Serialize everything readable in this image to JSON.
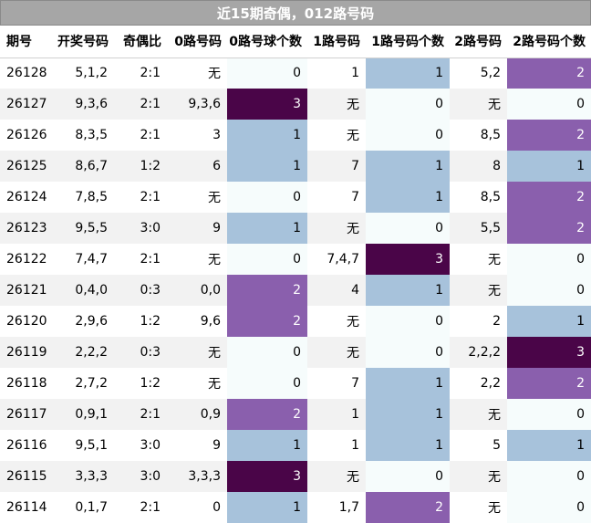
{
  "title": "近15期奇偶，012路号码",
  "colors": {
    "title_bg": "#a6a6a6",
    "count_0": "#f6fcfc",
    "count_1": "#a7c2db",
    "count_2": "#8a5fad",
    "count_3": "#4a0548"
  },
  "chart_data": {
    "type": "table",
    "columns": [
      "期号",
      "开奖号码",
      "奇偶比",
      "0路号码",
      "0路号球个数",
      "1路号码",
      "1路号码个数",
      "2路号码",
      "2路号码个数"
    ],
    "rows": [
      [
        "26128",
        "5,1,2",
        "2:1",
        "无",
        0,
        "1",
        1,
        "5,2",
        2
      ],
      [
        "26127",
        "9,3,6",
        "2:1",
        "9,3,6",
        3,
        "无",
        0,
        "无",
        0
      ],
      [
        "26126",
        "8,3,5",
        "2:1",
        "3",
        1,
        "无",
        0,
        "8,5",
        2
      ],
      [
        "26125",
        "8,6,7",
        "1:2",
        "6",
        1,
        "7",
        1,
        "8",
        1
      ],
      [
        "26124",
        "7,8,5",
        "2:1",
        "无",
        0,
        "7",
        1,
        "8,5",
        2
      ],
      [
        "26123",
        "9,5,5",
        "3:0",
        "9",
        1,
        "无",
        0,
        "5,5",
        2
      ],
      [
        "26122",
        "7,4,7",
        "2:1",
        "无",
        0,
        "7,4,7",
        3,
        "无",
        0
      ],
      [
        "26121",
        "0,4,0",
        "0:3",
        "0,0",
        2,
        "4",
        1,
        "无",
        0
      ],
      [
        "26120",
        "2,9,6",
        "1:2",
        "9,6",
        2,
        "无",
        0,
        "2",
        1
      ],
      [
        "26119",
        "2,2,2",
        "0:3",
        "无",
        0,
        "无",
        0,
        "2,2,2",
        3
      ],
      [
        "26118",
        "2,7,2",
        "1:2",
        "无",
        0,
        "7",
        1,
        "2,2",
        2
      ],
      [
        "26117",
        "0,9,1",
        "2:1",
        "0,9",
        2,
        "1",
        1,
        "无",
        0
      ],
      [
        "26116",
        "9,5,1",
        "3:0",
        "9",
        1,
        "1",
        1,
        "5",
        1
      ],
      [
        "26115",
        "3,3,3",
        "3:0",
        "3,3,3",
        3,
        "无",
        0,
        "无",
        0
      ],
      [
        "26114",
        "0,1,7",
        "2:1",
        "0",
        1,
        "1,7",
        2,
        "无",
        0
      ]
    ]
  }
}
